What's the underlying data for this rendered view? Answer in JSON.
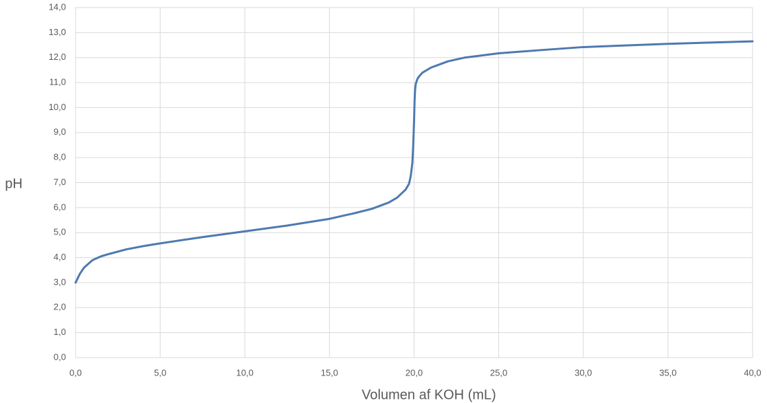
{
  "chart_data": {
    "type": "line",
    "x_label": "Volumen af KOH (mL)",
    "y_label": "pH",
    "xlim": [
      0,
      40
    ],
    "ylim": [
      0,
      14
    ],
    "grid": true,
    "xticks": [
      {
        "value": 0,
        "label": "0,0"
      },
      {
        "value": 5,
        "label": "5,0"
      },
      {
        "value": 10,
        "label": "10,0"
      },
      {
        "value": 15,
        "label": "15,0"
      },
      {
        "value": 20,
        "label": "20,0"
      },
      {
        "value": 25,
        "label": "25,0"
      },
      {
        "value": 30,
        "label": "30,0"
      },
      {
        "value": 35,
        "label": "35,0"
      },
      {
        "value": 40,
        "label": "40,0"
      }
    ],
    "yticks": [
      {
        "value": 0,
        "label": "0,0"
      },
      {
        "value": 1,
        "label": "1,0"
      },
      {
        "value": 2,
        "label": "2,0"
      },
      {
        "value": 3,
        "label": "3,0"
      },
      {
        "value": 4,
        "label": "4,0"
      },
      {
        "value": 5,
        "label": "5,0"
      },
      {
        "value": 6,
        "label": "6,0"
      },
      {
        "value": 7,
        "label": "7,0"
      },
      {
        "value": 8,
        "label": "8,0"
      },
      {
        "value": 9,
        "label": "9,0"
      },
      {
        "value": 10,
        "label": "10,0"
      },
      {
        "value": 11,
        "label": "11,0"
      },
      {
        "value": 12,
        "label": "12,0"
      },
      {
        "value": 13,
        "label": "13,0"
      },
      {
        "value": 14,
        "label": "14,0"
      }
    ],
    "series": [
      {
        "color": "#4f79b0",
        "x": [
          0,
          0.25,
          0.5,
          1,
          1.5,
          2,
          3,
          4,
          5,
          7.5,
          10,
          12.5,
          15,
          16.5,
          17.5,
          18.5,
          19,
          19.5,
          19.7,
          19.8,
          19.9,
          19.95,
          20,
          20.03,
          20.06,
          20.1,
          20.2,
          20.3,
          20.5,
          21,
          22,
          23,
          25,
          27.5,
          30,
          35,
          40
        ],
        "values": [
          3.0,
          3.35,
          3.6,
          3.9,
          4.05,
          4.15,
          4.33,
          4.46,
          4.57,
          4.82,
          5.05,
          5.28,
          5.55,
          5.78,
          5.95,
          6.2,
          6.4,
          6.72,
          6.95,
          7.25,
          7.8,
          8.5,
          9.5,
          10.3,
          10.7,
          10.95,
          11.15,
          11.25,
          11.4,
          11.6,
          11.85,
          12.0,
          12.17,
          12.3,
          12.42,
          12.55,
          12.65
        ]
      }
    ]
  }
}
